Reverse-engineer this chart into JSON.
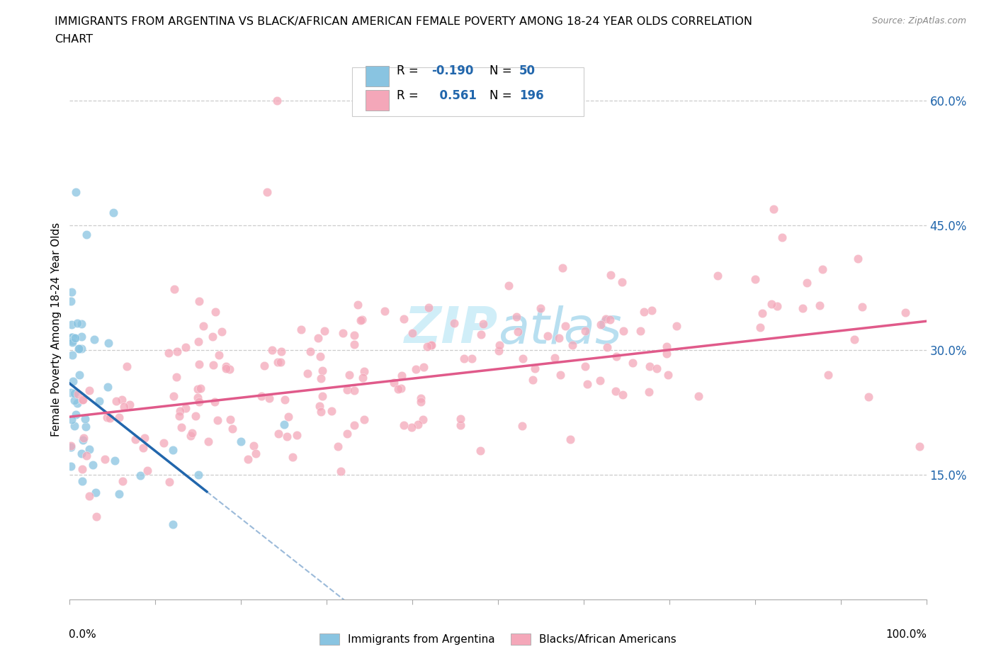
{
  "title_line1": "IMMIGRANTS FROM ARGENTINA VS BLACK/AFRICAN AMERICAN FEMALE POVERTY AMONG 18-24 YEAR OLDS CORRELATION",
  "title_line2": "CHART",
  "source_text": "Source: ZipAtlas.com",
  "ylabel": "Female Poverty Among 18-24 Year Olds",
  "legend_label1": "Immigrants from Argentina",
  "legend_label2": "Blacks/African Americans",
  "R1": -0.19,
  "N1": 50,
  "R2": 0.561,
  "N2": 196,
  "color_blue": "#89c4e1",
  "color_pink": "#f4a7b9",
  "color_blue_line": "#2166ac",
  "color_pink_line": "#e05a8a",
  "color_blue_dark": "#4393c3",
  "watermark_color": "#d0eef8",
  "ytick_vals": [
    0.0,
    0.15,
    0.3,
    0.45,
    0.6
  ],
  "ytick_labels": [
    "",
    "15.0%",
    "30.0%",
    "45.0%",
    "60.0%"
  ],
  "xlim": [
    0.0,
    1.0
  ],
  "ylim": [
    0.0,
    0.65
  ],
  "seed_blue": 42,
  "seed_pink": 7
}
